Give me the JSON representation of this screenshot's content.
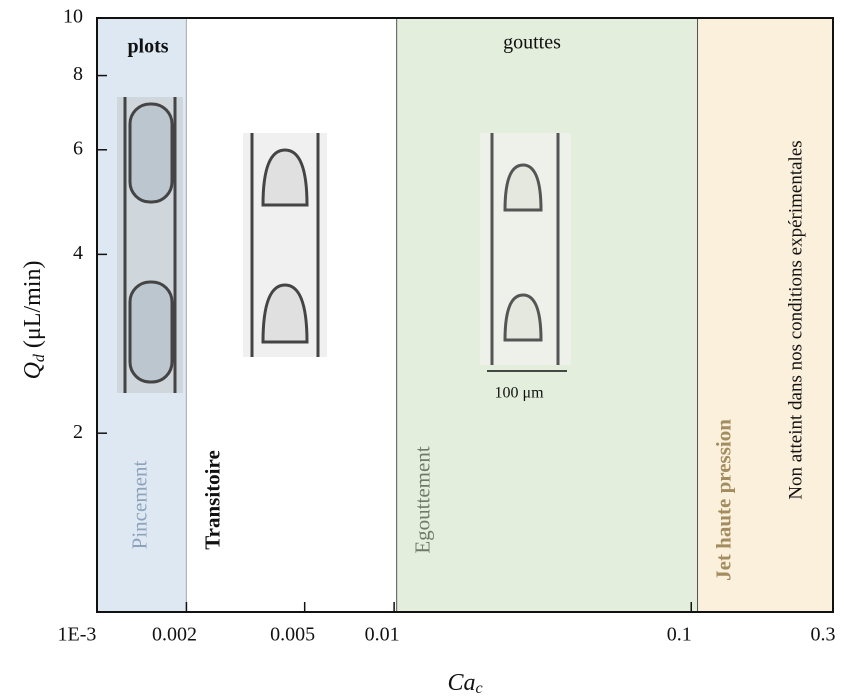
{
  "chart_data": {
    "type": "regions",
    "x_label": [
      "Ca",
      "c"
    ],
    "y_label": [
      "Q",
      "d",
      " (μL/min)"
    ],
    "xscale": "log",
    "yscale": "log",
    "xlim": [
      0.001,
      0.3
    ],
    "ylim": [
      1,
      10
    ],
    "xticks": [
      {
        "value": 0.001,
        "label": "1E-3"
      },
      0.002,
      0.005,
      0.01,
      0.1,
      0.3
    ],
    "yticks": [
      2,
      4,
      6,
      8,
      10
    ],
    "regions": [
      {
        "name": "Pincement",
        "x": [
          0.001,
          0.002
        ],
        "color": "#dde8f3",
        "label_color": "#8ea3bb"
      },
      {
        "name": "Transitoire",
        "x": [
          0.002,
          0.0102
        ],
        "color": "#ffffff",
        "label_color": "#111111"
      },
      {
        "name": "Egouttement",
        "x": [
          0.0102,
          0.105
        ],
        "color": "#e3eedc",
        "label_color": "#6f7b67"
      },
      {
        "name": "Jet haute pression",
        "x": [
          0.105,
          0.3
        ],
        "color": "#fbf0dc",
        "label_color": "#a38c5f"
      }
    ],
    "annotations": [
      "plots",
      "gouttes",
      "100 μm",
      "Non atteint dans nos conditions expérimentales"
    ]
  }
}
